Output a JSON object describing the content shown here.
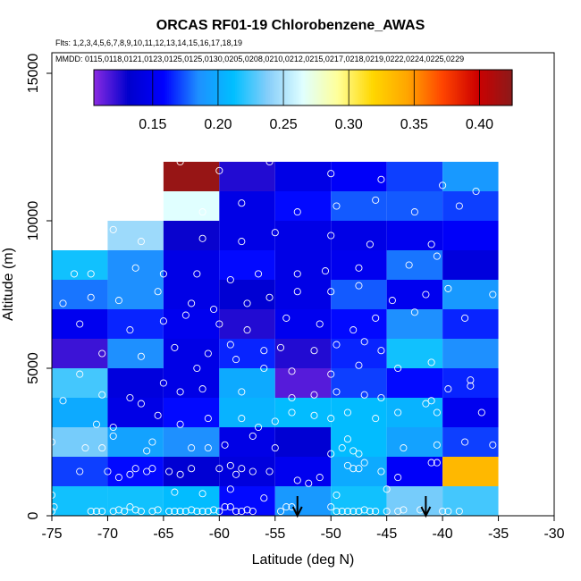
{
  "chart_data": {
    "type": "heatmap",
    "title": "ORCAS RF01-19 Chlorobenzene_AWAS",
    "flights_label": "Flts: 1,2,3,4,5,6,7,8,9,10,11,12,13,14,15,16,17,18,19",
    "dates_label": "MMDD: 0115,0118,0121,0123,0125,0125,0130,0205,0208,0210,0212,0215,0217,0218,0219,0222,0224,0225,0229",
    "xlabel": "Latitude (deg N)",
    "ylabel": "Altitude (m)",
    "xlim": [
      -75,
      -30
    ],
    "ylim": [
      0,
      15000
    ],
    "x_ticks": [
      "-75",
      "-70",
      "-65",
      "-60",
      "-55",
      "-50",
      "-45",
      "-40",
      "-35",
      "-30"
    ],
    "x_tick_values": [
      -75,
      -70,
      -65,
      -60,
      -55,
      -50,
      -45,
      -40,
      -35,
      -30
    ],
    "y_ticks": [
      "0",
      "5000",
      "10000",
      "15000"
    ],
    "y_tick_values": [
      0,
      5000,
      10000,
      15000
    ],
    "colorbar": {
      "min": 0.105,
      "max": 0.425,
      "ticks": [
        "0.15",
        "0.20",
        "0.25",
        "0.30",
        "0.35",
        "0.40"
      ],
      "tick_values": [
        0.15,
        0.2,
        0.25,
        0.3,
        0.35,
        0.4
      ],
      "colors": [
        "#8a2be2",
        "#0000cd",
        "#0000ff",
        "#1e90ff",
        "#00bfff",
        "#87cefa",
        "#e0ffff",
        "#ffff99",
        "#ffd700",
        "#ffa500",
        "#ff4500",
        "#cd0000",
        "#8b1a1a"
      ]
    },
    "cell_size": {
      "lat_deg": 5,
      "alt_m": 1000
    },
    "cells": [
      {
        "lat": -75,
        "alt": 0,
        "v": 0.215
      },
      {
        "lat": -70,
        "alt": 0,
        "v": 0.215
      },
      {
        "lat": -65,
        "alt": 0,
        "v": 0.21
      },
      {
        "lat": -60,
        "alt": 0,
        "v": 0.16
      },
      {
        "lat": -55,
        "alt": 0,
        "v": 0.19
      },
      {
        "lat": -50,
        "alt": 0,
        "v": 0.215
      },
      {
        "lat": -45,
        "alt": 0,
        "v": 0.235
      },
      {
        "lat": -40,
        "alt": 0,
        "v": 0.225
      },
      {
        "lat": -75,
        "alt": 1000,
        "v": 0.17
      },
      {
        "lat": -70,
        "alt": 1000,
        "v": 0.16
      },
      {
        "lat": -65,
        "alt": 1000,
        "v": 0.135
      },
      {
        "lat": -60,
        "alt": 1000,
        "v": 0.14
      },
      {
        "lat": -55,
        "alt": 1000,
        "v": 0.15
      },
      {
        "lat": -50,
        "alt": 1000,
        "v": 0.2
      },
      {
        "lat": -45,
        "alt": 1000,
        "v": 0.155
      },
      {
        "lat": -40,
        "alt": 1000,
        "v": 0.335
      },
      {
        "lat": -75,
        "alt": 2000,
        "v": 0.235
      },
      {
        "lat": -70,
        "alt": 2000,
        "v": 0.195
      },
      {
        "lat": -65,
        "alt": 2000,
        "v": 0.185
      },
      {
        "lat": -60,
        "alt": 2000,
        "v": 0.145
      },
      {
        "lat": -55,
        "alt": 2000,
        "v": 0.135
      },
      {
        "lat": -50,
        "alt": 2000,
        "v": 0.21
      },
      {
        "lat": -45,
        "alt": 2000,
        "v": 0.195
      },
      {
        "lat": -40,
        "alt": 2000,
        "v": 0.17
      },
      {
        "lat": -75,
        "alt": 3000,
        "v": 0.2
      },
      {
        "lat": -70,
        "alt": 3000,
        "v": 0.145
      },
      {
        "lat": -65,
        "alt": 3000,
        "v": 0.16
      },
      {
        "lat": -60,
        "alt": 3000,
        "v": 0.205
      },
      {
        "lat": -55,
        "alt": 3000,
        "v": 0.21
      },
      {
        "lat": -50,
        "alt": 3000,
        "v": 0.21
      },
      {
        "lat": -45,
        "alt": 3000,
        "v": 0.205
      },
      {
        "lat": -40,
        "alt": 3000,
        "v": 0.15
      },
      {
        "lat": -75,
        "alt": 4000,
        "v": 0.225
      },
      {
        "lat": -70,
        "alt": 4000,
        "v": 0.14
      },
      {
        "lat": -65,
        "alt": 4000,
        "v": 0.145
      },
      {
        "lat": -60,
        "alt": 4000,
        "v": 0.2
      },
      {
        "lat": -55,
        "alt": 4000,
        "v": 0.115
      },
      {
        "lat": -50,
        "alt": 4000,
        "v": 0.17
      },
      {
        "lat": -45,
        "alt": 4000,
        "v": 0.16
      },
      {
        "lat": -40,
        "alt": 4000,
        "v": 0.165
      },
      {
        "lat": -75,
        "alt": 5000,
        "v": 0.12
      },
      {
        "lat": -70,
        "alt": 5000,
        "v": 0.185
      },
      {
        "lat": -65,
        "alt": 5000,
        "v": 0.145
      },
      {
        "lat": -60,
        "alt": 5000,
        "v": 0.165
      },
      {
        "lat": -55,
        "alt": 5000,
        "v": 0.125
      },
      {
        "lat": -50,
        "alt": 5000,
        "v": 0.165
      },
      {
        "lat": -45,
        "alt": 5000,
        "v": 0.215
      },
      {
        "lat": -40,
        "alt": 5000,
        "v": 0.185
      },
      {
        "lat": -75,
        "alt": 6000,
        "v": 0.15
      },
      {
        "lat": -70,
        "alt": 6000,
        "v": 0.165
      },
      {
        "lat": -65,
        "alt": 6000,
        "v": 0.15
      },
      {
        "lat": -60,
        "alt": 6000,
        "v": 0.125
      },
      {
        "lat": -55,
        "alt": 6000,
        "v": 0.15
      },
      {
        "lat": -50,
        "alt": 6000,
        "v": 0.16
      },
      {
        "lat": -45,
        "alt": 6000,
        "v": 0.185
      },
      {
        "lat": -40,
        "alt": 6000,
        "v": 0.165
      },
      {
        "lat": -75,
        "alt": 7000,
        "v": 0.18
      },
      {
        "lat": -70,
        "alt": 7000,
        "v": 0.185
      },
      {
        "lat": -65,
        "alt": 7000,
        "v": 0.145
      },
      {
        "lat": -60,
        "alt": 7000,
        "v": 0.135
      },
      {
        "lat": -55,
        "alt": 7000,
        "v": 0.145
      },
      {
        "lat": -50,
        "alt": 7000,
        "v": 0.175
      },
      {
        "lat": -45,
        "alt": 7000,
        "v": 0.15
      },
      {
        "lat": -40,
        "alt": 7000,
        "v": 0.19
      },
      {
        "lat": -75,
        "alt": 8000,
        "v": 0.215
      },
      {
        "lat": -70,
        "alt": 8000,
        "v": 0.185
      },
      {
        "lat": -65,
        "alt": 8000,
        "v": 0.145
      },
      {
        "lat": -60,
        "alt": 8000,
        "v": 0.16
      },
      {
        "lat": -55,
        "alt": 8000,
        "v": 0.145
      },
      {
        "lat": -50,
        "alt": 8000,
        "v": 0.15
      },
      {
        "lat": -45,
        "alt": 8000,
        "v": 0.18
      },
      {
        "lat": -40,
        "alt": 8000,
        "v": 0.14
      },
      {
        "lat": -70,
        "alt": 9000,
        "v": 0.245
      },
      {
        "lat": -65,
        "alt": 9000,
        "v": 0.13
      },
      {
        "lat": -60,
        "alt": 9000,
        "v": 0.145
      },
      {
        "lat": -55,
        "alt": 9000,
        "v": 0.145
      },
      {
        "lat": -50,
        "alt": 9000,
        "v": 0.145
      },
      {
        "lat": -45,
        "alt": 9000,
        "v": 0.15
      },
      {
        "lat": -40,
        "alt": 9000,
        "v": 0.155
      },
      {
        "lat": -65,
        "alt": 10000,
        "v": 0.265
      },
      {
        "lat": -60,
        "alt": 10000,
        "v": 0.145
      },
      {
        "lat": -55,
        "alt": 10000,
        "v": 0.16
      },
      {
        "lat": -50,
        "alt": 10000,
        "v": 0.175
      },
      {
        "lat": -45,
        "alt": 10000,
        "v": 0.175
      },
      {
        "lat": -40,
        "alt": 10000,
        "v": 0.17
      },
      {
        "lat": -65,
        "alt": 11000,
        "v": 0.42
      },
      {
        "lat": -60,
        "alt": 11000,
        "v": 0.125
      },
      {
        "lat": -55,
        "alt": 11000,
        "v": 0.145
      },
      {
        "lat": -50,
        "alt": 11000,
        "v": 0.155
      },
      {
        "lat": -45,
        "alt": 11000,
        "v": 0.17
      },
      {
        "lat": -40,
        "alt": 11000,
        "v": 0.19
      }
    ],
    "arrows_at_lat": [
      -53,
      -41.5
    ],
    "samples": [
      [
        -75,
        150
      ],
      [
        -74.8,
        300
      ],
      [
        -71.5,
        150
      ],
      [
        -71,
        150
      ],
      [
        -70.5,
        150
      ],
      [
        -69.5,
        150
      ],
      [
        -69,
        200
      ],
      [
        -68.5,
        150
      ],
      [
        -68,
        300
      ],
      [
        -67.5,
        200
      ],
      [
        -67,
        150
      ],
      [
        -66,
        150
      ],
      [
        -65.5,
        200
      ],
      [
        -64.5,
        150
      ],
      [
        -64,
        150
      ],
      [
        -63.5,
        150
      ],
      [
        -63,
        150
      ],
      [
        -62.5,
        200
      ],
      [
        -62,
        150
      ],
      [
        -61.5,
        150
      ],
      [
        -61,
        150
      ],
      [
        -60.5,
        200
      ],
      [
        -60,
        150
      ],
      [
        -59.5,
        300
      ],
      [
        -59,
        300
      ],
      [
        -58.5,
        150
      ],
      [
        -58,
        150
      ],
      [
        -57.5,
        200
      ],
      [
        -57,
        150
      ],
      [
        -54.5,
        150
      ],
      [
        -54,
        300
      ],
      [
        -53.5,
        300
      ],
      [
        -50,
        300
      ],
      [
        -49.5,
        150
      ],
      [
        -49,
        150
      ],
      [
        -48.5,
        150
      ],
      [
        -48,
        150
      ],
      [
        -47.5,
        150
      ],
      [
        -47,
        200
      ],
      [
        -46.5,
        150
      ],
      [
        -46,
        150
      ],
      [
        -45,
        150
      ],
      [
        -44,
        150
      ],
      [
        -43.5,
        200
      ],
      [
        -42,
        200
      ],
      [
        -40,
        150
      ],
      [
        -39.5,
        150
      ],
      [
        -38.5,
        150
      ],
      [
        -75,
        700
      ],
      [
        -64,
        800
      ],
      [
        -61.5,
        750
      ],
      [
        -59,
        900
      ],
      [
        -56,
        600
      ],
      [
        -53,
        1200
      ],
      [
        -52,
        1100
      ],
      [
        -49.5,
        700
      ],
      [
        -45,
        900
      ],
      [
        -72.5,
        1500
      ],
      [
        -70,
        1500
      ],
      [
        -69,
        1300
      ],
      [
        -68,
        1400
      ],
      [
        -67.5,
        1600
      ],
      [
        -66.5,
        1500
      ],
      [
        -66,
        1600
      ],
      [
        -64.5,
        1500
      ],
      [
        -63.5,
        1400
      ],
      [
        -62.5,
        1600
      ],
      [
        -60,
        1600
      ],
      [
        -59,
        1700
      ],
      [
        -58.5,
        1400
      ],
      [
        -58,
        1600
      ],
      [
        -57,
        1500
      ],
      [
        -55.5,
        1500
      ],
      [
        -51,
        1300
      ],
      [
        -48.5,
        1700
      ],
      [
        -48,
        1600
      ],
      [
        -47.5,
        1600
      ],
      [
        -47,
        1800
      ],
      [
        -45.5,
        1500
      ],
      [
        -44,
        1300
      ],
      [
        -41,
        1800
      ],
      [
        -40.5,
        1800
      ],
      [
        -75,
        2500
      ],
      [
        -72,
        2300
      ],
      [
        -70.5,
        2300
      ],
      [
        -69.5,
        2700
      ],
      [
        -66.5,
        2200
      ],
      [
        -66,
        2500
      ],
      [
        -62.5,
        2300
      ],
      [
        -61,
        2300
      ],
      [
        -59.5,
        2400
      ],
      [
        -57,
        2700
      ],
      [
        -55,
        2300
      ],
      [
        -50,
        2100
      ],
      [
        -49,
        2300
      ],
      [
        -48.5,
        2600
      ],
      [
        -48,
        2200
      ],
      [
        -47.5,
        2100
      ],
      [
        -43.5,
        2300
      ],
      [
        -40.5,
        2400
      ],
      [
        -38,
        2500
      ],
      [
        -35.5,
        2400
      ],
      [
        -71,
        3100
      ],
      [
        -69.5,
        3000
      ],
      [
        -65.5,
        3400
      ],
      [
        -63.5,
        3100
      ],
      [
        -61,
        3300
      ],
      [
        -58,
        3300
      ],
      [
        -56.5,
        3000
      ],
      [
        -55,
        3200
      ],
      [
        -53.5,
        3500
      ],
      [
        -51.5,
        3400
      ],
      [
        -50,
        3300
      ],
      [
        -48.5,
        3500
      ],
      [
        -46,
        3300
      ],
      [
        -44,
        3500
      ],
      [
        -41.5,
        3800
      ],
      [
        -40.5,
        3500
      ],
      [
        -36.5,
        3500
      ],
      [
        -74,
        3900
      ],
      [
        -70.5,
        4100
      ],
      [
        -68,
        4000
      ],
      [
        -67,
        3800
      ],
      [
        -63.5,
        4200
      ],
      [
        -61.5,
        4300
      ],
      [
        -58,
        4200
      ],
      [
        -53.5,
        4000
      ],
      [
        -51.5,
        4100
      ],
      [
        -49.5,
        4200
      ],
      [
        -47,
        4100
      ],
      [
        -45.5,
        4000
      ],
      [
        -41,
        3900
      ],
      [
        -39.5,
        4300
      ],
      [
        -37.5,
        4400
      ],
      [
        -72.5,
        4800
      ],
      [
        -65,
        4500
      ],
      [
        -62,
        5000
      ],
      [
        -58.5,
        5300
      ],
      [
        -56,
        5000
      ],
      [
        -53.5,
        4900
      ],
      [
        -50,
        4800
      ],
      [
        -47.5,
        5100
      ],
      [
        -44,
        5000
      ],
      [
        -41,
        5200
      ],
      [
        -37.5,
        4600
      ],
      [
        -70.5,
        5500
      ],
      [
        -67,
        5400
      ],
      [
        -64,
        5700
      ],
      [
        -61,
        5500
      ],
      [
        -59,
        5800
      ],
      [
        -56,
        5600
      ],
      [
        -54.5,
        5700
      ],
      [
        -51.5,
        5600
      ],
      [
        -49.5,
        5800
      ],
      [
        -47,
        5900
      ],
      [
        -45.5,
        5600
      ],
      [
        -72.5,
        6500
      ],
      [
        -68,
        6300
      ],
      [
        -65,
        6600
      ],
      [
        -63,
        6800
      ],
      [
        -60,
        6500
      ],
      [
        -57.5,
        6300
      ],
      [
        -54,
        6700
      ],
      [
        -51,
        6500
      ],
      [
        -48,
        6300
      ],
      [
        -46,
        6700
      ],
      [
        -42.5,
        6900
      ],
      [
        -38,
        6700
      ],
      [
        -74,
        7200
      ],
      [
        -71.5,
        7400
      ],
      [
        -69,
        7300
      ],
      [
        -65.5,
        7600
      ],
      [
        -62.5,
        7200
      ],
      [
        -60.5,
        7000
      ],
      [
        -57.5,
        7200
      ],
      [
        -55.5,
        7400
      ],
      [
        -53,
        7600
      ],
      [
        -50,
        7600
      ],
      [
        -47.5,
        7800
      ],
      [
        -44.5,
        7300
      ],
      [
        -41.5,
        7500
      ],
      [
        -39.5,
        7700
      ],
      [
        -35.5,
        7500
      ],
      [
        -71.5,
        8200
      ],
      [
        -73,
        8200
      ],
      [
        -67.5,
        8400
      ],
      [
        -65,
        8200
      ],
      [
        -62,
        8200
      ],
      [
        -59,
        8000
      ],
      [
        -56.5,
        8200
      ],
      [
        -53,
        8200
      ],
      [
        -50.5,
        8300
      ],
      [
        -47.5,
        8400
      ],
      [
        -43,
        8500
      ],
      [
        -40.5,
        8800
      ],
      [
        -70.5,
        9700
      ],
      [
        -69.5,
        9700
      ],
      [
        -67,
        9300
      ],
      [
        -61.5,
        9400
      ],
      [
        -58,
        9300
      ],
      [
        -55,
        9600
      ],
      [
        -50,
        9500
      ],
      [
        -46.5,
        9200
      ],
      [
        -41,
        9200
      ],
      [
        -67,
        10400
      ],
      [
        -61.5,
        10300
      ],
      [
        -58,
        10600
      ],
      [
        -53,
        10300
      ],
      [
        -49.5,
        10500
      ],
      [
        -46,
        10700
      ],
      [
        -42.5,
        10300
      ],
      [
        -38.5,
        10500
      ],
      [
        -37,
        11000
      ],
      [
        -63.5,
        12000
      ],
      [
        -60,
        11700
      ],
      [
        -55.5,
        12000
      ],
      [
        -50,
        11600
      ],
      [
        -45.5,
        11400
      ],
      [
        -40,
        11200
      ]
    ]
  }
}
